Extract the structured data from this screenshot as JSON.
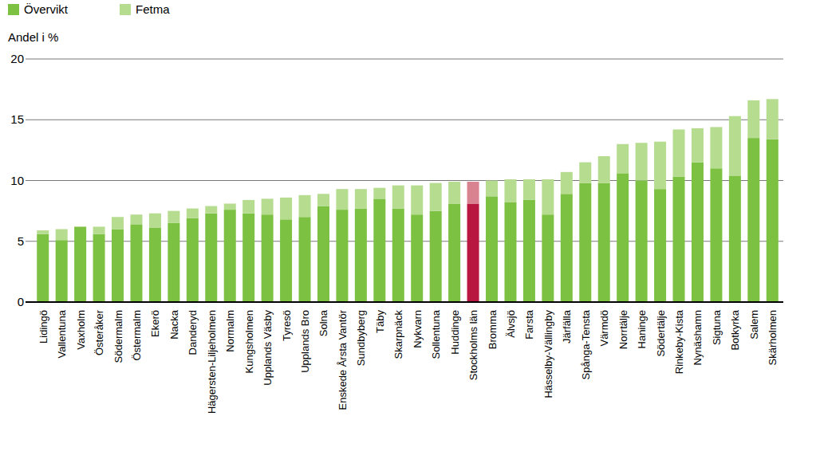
{
  "chart_data": {
    "type": "bar",
    "stacked": true,
    "y_label": "Andel i %",
    "legend": "top-left",
    "grid": true,
    "ylim": [
      0,
      20
    ],
    "yticks": [
      0,
      5,
      10,
      15,
      20
    ],
    "categories": [
      "Lidingö",
      "Vallentuna",
      "Vaxholm",
      "Österåker",
      "Södermalm",
      "Östermalm",
      "Ekerö",
      "Nacka",
      "Danderyd",
      "Hägersten-Liljeholmen",
      "Normalm",
      "Kungsholmen",
      "Upplands Väsby",
      "Tyresö",
      "Upplands Bro",
      "Solna",
      "Enskede Årsta Vantör",
      "Sundbyberg",
      "Täby",
      "Skarpnäck",
      "Nykvarn",
      "Sollentuna",
      "Huddinge",
      "Stockholms län",
      "Bromma",
      "Älvsjö",
      "Farsta",
      "Hässelby-Vällingby",
      "Järfälla",
      "Spånga-Tensta",
      "Värmdö",
      "Norrtälje",
      "Haninge",
      "Södertälje",
      "Rinkeby-Kista",
      "Nynäshamn",
      "Sigtuna",
      "Botkyrka",
      "Salem",
      "Skärholmen"
    ],
    "series": [
      {
        "name": "Övervikt",
        "color": "#7dc142",
        "colors": [
          "#7dc142",
          "#7dc142",
          "#7dc142",
          "#7dc142",
          "#7dc142",
          "#7dc142",
          "#7dc142",
          "#7dc142",
          "#7dc142",
          "#7dc142",
          "#7dc142",
          "#7dc142",
          "#7dc142",
          "#7dc142",
          "#7dc142",
          "#7dc142",
          "#7dc142",
          "#7dc142",
          "#7dc142",
          "#7dc142",
          "#7dc142",
          "#7dc142",
          "#7dc142",
          "#b8183f",
          "#7dc142",
          "#7dc142",
          "#7dc142",
          "#7dc142",
          "#7dc142",
          "#7dc142",
          "#7dc142",
          "#7dc142",
          "#7dc142",
          "#7dc142",
          "#7dc142",
          "#7dc142",
          "#7dc142",
          "#7dc142",
          "#7dc142",
          "#7dc142"
        ],
        "values": [
          5.6,
          5.1,
          6.2,
          5.6,
          6.0,
          6.4,
          6.1,
          6.5,
          6.9,
          7.3,
          7.6,
          7.3,
          7.2,
          6.8,
          7.0,
          7.9,
          7.6,
          7.7,
          8.5,
          7.7,
          7.2,
          7.5,
          8.1,
          8.1,
          8.7,
          8.2,
          8.4,
          7.2,
          8.9,
          9.8,
          9.8,
          10.6,
          10.0,
          9.3,
          10.3,
          11.5,
          11.0,
          10.4,
          13.5,
          13.4
        ]
      },
      {
        "name": "Fetma",
        "color": "#b6dc90",
        "colors": [
          "#b6dc90",
          "#b6dc90",
          "#b6dc90",
          "#b6dc90",
          "#b6dc90",
          "#b6dc90",
          "#b6dc90",
          "#b6dc90",
          "#b6dc90",
          "#b6dc90",
          "#b6dc90",
          "#b6dc90",
          "#b6dc90",
          "#b6dc90",
          "#b6dc90",
          "#b6dc90",
          "#b6dc90",
          "#b6dc90",
          "#b6dc90",
          "#b6dc90",
          "#b6dc90",
          "#b6dc90",
          "#b6dc90",
          "#d8838f",
          "#b6dc90",
          "#b6dc90",
          "#b6dc90",
          "#b6dc90",
          "#b6dc90",
          "#b6dc90",
          "#b6dc90",
          "#b6dc90",
          "#b6dc90",
          "#b6dc90",
          "#b6dc90",
          "#b6dc90",
          "#b6dc90",
          "#b6dc90",
          "#b6dc90",
          "#b6dc90"
        ],
        "values": [
          0.3,
          0.9,
          0.0,
          0.6,
          1.0,
          0.8,
          1.2,
          1.0,
          0.8,
          0.6,
          0.5,
          1.1,
          1.3,
          1.8,
          1.8,
          1.0,
          1.7,
          1.6,
          0.9,
          1.9,
          2.4,
          2.3,
          1.8,
          1.8,
          1.3,
          1.9,
          1.7,
          2.9,
          1.8,
          1.7,
          2.2,
          2.4,
          3.1,
          3.9,
          3.9,
          2.8,
          3.4,
          4.9,
          3.1,
          3.3
        ]
      }
    ]
  }
}
